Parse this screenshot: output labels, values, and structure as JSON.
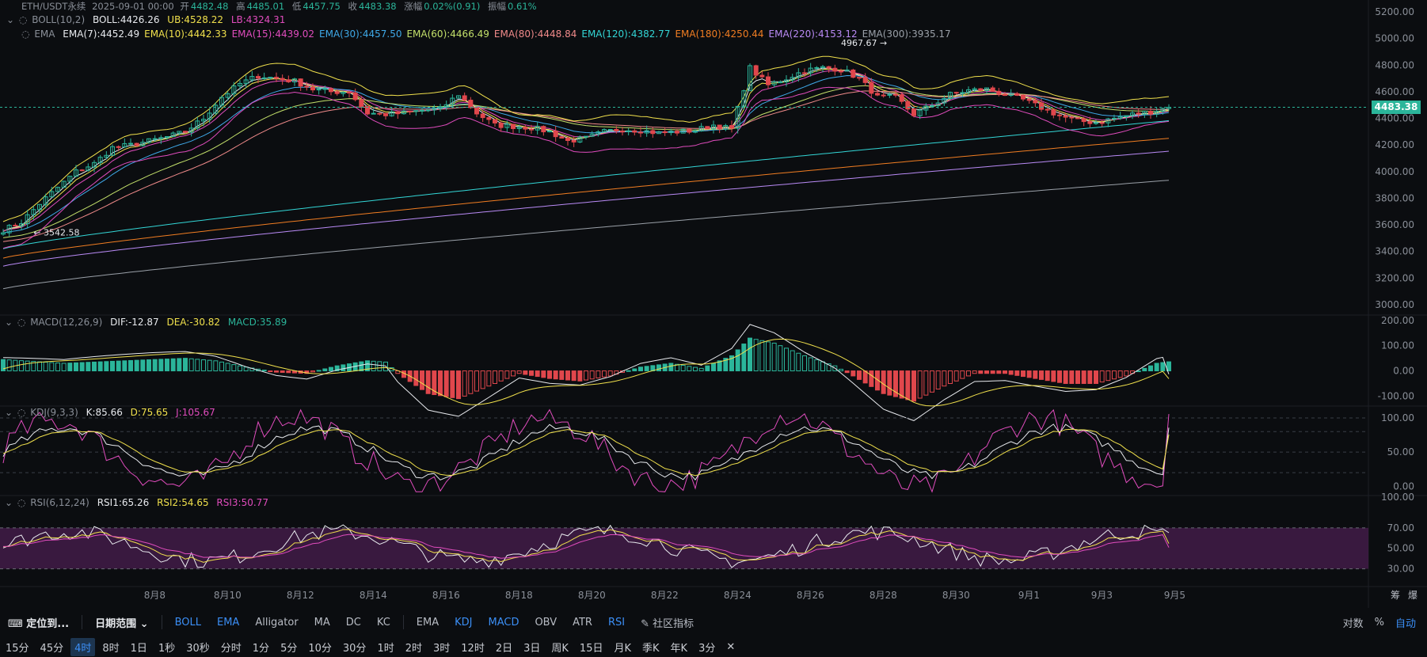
{
  "header": {
    "symbol": "ETH/USDT永续",
    "time": "2025-09-01 00:00",
    "open_label": "开",
    "open": "4482.48",
    "high_label": "高",
    "high": "4485.01",
    "low_label": "低",
    "low": "4457.75",
    "close_label": "收",
    "close": "4483.38",
    "change_label": "涨幅",
    "change": "0.02%(0.91)",
    "amp_label": "振幅",
    "amp": "0.61%"
  },
  "boll_legend": {
    "name": "BOLL(10,2)",
    "mid": "BOLL:4426.26",
    "ub": "UB:4528.22",
    "lb": "LB:4324.31"
  },
  "ema_legend": {
    "name": "EMA",
    "items": [
      {
        "text": "EMA(7):4452.49",
        "color": "#e8eaee"
      },
      {
        "text": "EMA(10):4442.33",
        "color": "#f0e04c"
      },
      {
        "text": "EMA(15):4439.02",
        "color": "#e04cbd"
      },
      {
        "text": "EMA(30):4457.50",
        "color": "#3fa9e8"
      },
      {
        "text": "EMA(60):4466.49",
        "color": "#c3e06a"
      },
      {
        "text": "EMA(80):4448.84",
        "color": "#f08a8a"
      },
      {
        "text": "EMA(120):4382.77",
        "color": "#33d6d6"
      },
      {
        "text": "EMA(180):4250.44",
        "color": "#f07d22"
      },
      {
        "text": "EMA(220):4153.12",
        "color": "#b98af5"
      },
      {
        "text": "EMA(300):3935.17",
        "color": "#9aa0a8"
      }
    ]
  },
  "macd_legend": {
    "name": "MACD(12,26,9)",
    "dif": "DIF:-12.87",
    "dea": "DEA:-30.82",
    "macd": "MACD:35.89"
  },
  "kdj_legend": {
    "name": "KDJ(9,3,3)",
    "k": "K:85.66",
    "d": "D:75.65",
    "j": "J:105.67"
  },
  "rsi_legend": {
    "name": "RSI(6,12,24)",
    "r1": "RSI1:65.26",
    "r2": "RSI2:54.65",
    "r3": "RSI3:50.77"
  },
  "current_price": "4483.38",
  "annotations": {
    "high": "4967.67",
    "low": "3542.58"
  },
  "toolbar": {
    "locate": "定位到...",
    "date_range": "日期范围",
    "indicators_main": [
      "BOLL",
      "EMA",
      "Alligator",
      "MA",
      "DC",
      "KC"
    ],
    "indicators_sub": [
      "EMA",
      "KDJ",
      "MACD",
      "OBV",
      "ATR",
      "RSI"
    ],
    "community": "社区指标",
    "right": [
      "对数",
      "%",
      "自动"
    ]
  },
  "timeframes": [
    "15分",
    "45分",
    "4时",
    "8时",
    "1日",
    "1秒",
    "30秒",
    "分时",
    "1分",
    "5分",
    "10分",
    "30分",
    "1时",
    "2时",
    "3时",
    "12时",
    "2日",
    "3日",
    "周K",
    "15日",
    "月K",
    "季K",
    "年K",
    "3分"
  ],
  "active_timeframe": "4时",
  "axis_side_labels": [
    "筹",
    "爆"
  ],
  "colors": {
    "up": "#2bb59a",
    "down": "#e0474c",
    "bg": "#0b0d10",
    "rsi_band": "#4a1d4f"
  },
  "chart_data": [
    {
      "type": "candlestick",
      "title": "ETH/USDT永续",
      "xlabel": "",
      "ylabel": "",
      "x_ticks": [
        "8月8",
        "8月10",
        "8月12",
        "8月14",
        "8月16",
        "8月18",
        "8月20",
        "8月22",
        "8月24",
        "8月26",
        "8月28",
        "8月30",
        "9月1",
        "9月3",
        "9月5"
      ],
      "y_ticks": [
        "5200.00",
        "5000.00",
        "4800.00",
        "4600.00",
        "4400.00",
        "4200.00",
        "4000.00",
        "3800.00",
        "3600.00",
        "3400.00",
        "3200.00",
        "3000.00"
      ],
      "ylim": [
        2940,
        5230
      ],
      "close_path": [
        [
          0,
          3560
        ],
        [
          3,
          3620
        ],
        [
          6,
          3760
        ],
        [
          9,
          3880
        ],
        [
          12,
          4000
        ],
        [
          15,
          4060
        ],
        [
          18,
          4180
        ],
        [
          21,
          4200
        ],
        [
          24,
          4230
        ],
        [
          27,
          4260
        ],
        [
          30,
          4300
        ],
        [
          33,
          4400
        ],
        [
          36,
          4560
        ],
        [
          39,
          4660
        ],
        [
          42,
          4720
        ],
        [
          45,
          4700
        ],
        [
          48,
          4680
        ],
        [
          51,
          4620
        ],
        [
          54,
          4600
        ],
        [
          57,
          4600
        ],
        [
          60,
          4440
        ],
        [
          63,
          4430
        ],
        [
          66,
          4440
        ],
        [
          69,
          4460
        ],
        [
          72,
          4470
        ],
        [
          75,
          4580
        ],
        [
          78,
          4440
        ],
        [
          81,
          4350
        ],
        [
          84,
          4340
        ],
        [
          87,
          4330
        ],
        [
          90,
          4300
        ],
        [
          93,
          4230
        ],
        [
          96,
          4250
        ],
        [
          99,
          4300
        ],
        [
          102,
          4320
        ],
        [
          105,
          4310
        ],
        [
          108,
          4290
        ],
        [
          111,
          4300
        ],
        [
          114,
          4310
        ],
        [
          117,
          4350
        ],
        [
          120,
          4320
        ],
        [
          123,
          4780
        ],
        [
          126,
          4650
        ],
        [
          129,
          4700
        ],
        [
          132,
          4760
        ],
        [
          135,
          4780
        ],
        [
          138,
          4770
        ],
        [
          141,
          4700
        ],
        [
          144,
          4560
        ],
        [
          147,
          4560
        ],
        [
          150,
          4430
        ],
        [
          153,
          4500
        ],
        [
          156,
          4580
        ],
        [
          159,
          4610
        ],
        [
          162,
          4620
        ],
        [
          165,
          4580
        ],
        [
          168,
          4540
        ],
        [
          171,
          4480
        ],
        [
          174,
          4420
        ],
        [
          177,
          4380
        ],
        [
          180,
          4370
        ],
        [
          183,
          4400
        ],
        [
          186,
          4430
        ],
        [
          189,
          4450
        ],
        [
          192,
          4483
        ]
      ],
      "ema_final_values": {
        "EMA7": 4452.49,
        "EMA10": 4442.33,
        "EMA15": 4439.02,
        "EMA30": 4457.5,
        "EMA60": 4466.49,
        "EMA80": 4448.84,
        "EMA120": 4382.77,
        "EMA180": 4250.44,
        "EMA220": 4153.12,
        "EMA300": 3935.17
      },
      "boll": {
        "mid": 4426.26,
        "ub": 4528.22,
        "lb": 4324.31
      }
    },
    {
      "type": "bar",
      "title": "MACD(12,26,9)",
      "y_ticks": [
        "200.00",
        "100.00",
        "0.00",
        "-100.00"
      ],
      "ylim": [
        -130,
        215
      ],
      "hist_path": [
        [
          0,
          45
        ],
        [
          10,
          30
        ],
        [
          20,
          40
        ],
        [
          30,
          50
        ],
        [
          35,
          40
        ],
        [
          40,
          15
        ],
        [
          45,
          -5
        ],
        [
          50,
          -10
        ],
        [
          55,
          20
        ],
        [
          60,
          40
        ],
        [
          63,
          35
        ],
        [
          65,
          -10
        ],
        [
          70,
          -90
        ],
        [
          75,
          -110
        ],
        [
          80,
          -60
        ],
        [
          85,
          -10
        ],
        [
          90,
          -30
        ],
        [
          95,
          -40
        ],
        [
          100,
          -20
        ],
        [
          105,
          15
        ],
        [
          110,
          30
        ],
        [
          115,
          10
        ],
        [
          120,
          60
        ],
        [
          123,
          130
        ],
        [
          127,
          110
        ],
        [
          132,
          60
        ],
        [
          137,
          20
        ],
        [
          140,
          -20
        ],
        [
          145,
          -90
        ],
        [
          150,
          -120
        ],
        [
          155,
          -60
        ],
        [
          160,
          -10
        ],
        [
          165,
          -10
        ],
        [
          170,
          -30
        ],
        [
          175,
          -50
        ],
        [
          180,
          -50
        ],
        [
          185,
          -20
        ],
        [
          190,
          30
        ],
        [
          192,
          36
        ]
      ],
      "dif": -12.87,
      "dea": -30.82,
      "macd": 35.89
    },
    {
      "type": "line",
      "title": "KDJ(9,3,3)",
      "y_ticks": [
        "100.00",
        "50.00",
        "0.00"
      ],
      "ylim": [
        -10,
        115
      ],
      "k": 85.66,
      "d": 75.65,
      "j": 105.67
    },
    {
      "type": "line",
      "title": "RSI(6,12,24)",
      "y_ticks": [
        "100.00",
        "70.00",
        "50.00",
        "30.00"
      ],
      "ylim": [
        15,
        100
      ],
      "band": [
        30,
        70
      ],
      "rsi1": 65.26,
      "rsi2": 54.65,
      "rsi3": 50.77
    }
  ]
}
